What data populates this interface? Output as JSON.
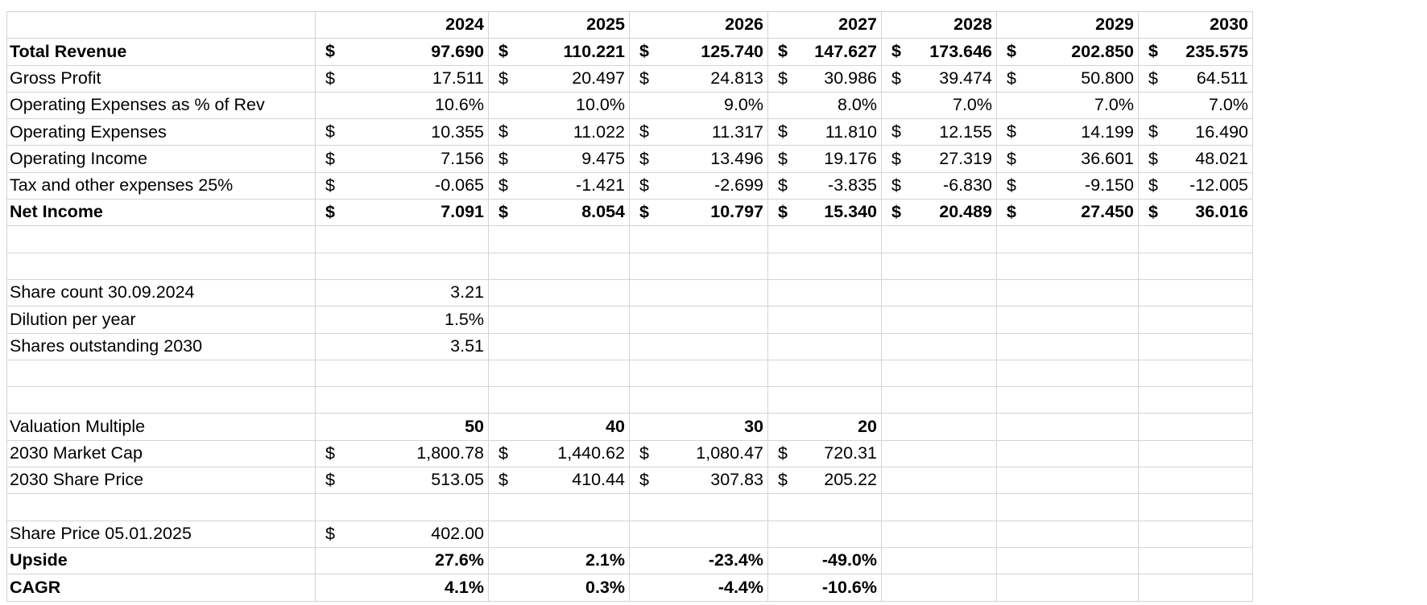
{
  "spreadsheet": {
    "years": [
      "2024",
      "2025",
      "2026",
      "2027",
      "2028",
      "2029",
      "2030"
    ],
    "currency": "$",
    "rows": {
      "total_revenue": {
        "label": "Total Revenue",
        "values": [
          "97.690",
          "110.221",
          "125.740",
          "147.627",
          "173.646",
          "202.850",
          "235.575"
        ]
      },
      "gross_profit": {
        "label": "Gross Profit",
        "values": [
          "17.511",
          "20.497",
          "24.813",
          "30.986",
          "39.474",
          "50.800",
          "64.511"
        ]
      },
      "opex_pct": {
        "label": "Operating Expenses as % of Rev",
        "values": [
          "10.6%",
          "10.0%",
          "9.0%",
          "8.0%",
          "7.0%",
          "7.0%",
          "7.0%"
        ]
      },
      "opex": {
        "label": "Operating Expenses",
        "values": [
          "10.355",
          "11.022",
          "11.317",
          "11.810",
          "12.155",
          "14.199",
          "16.490"
        ]
      },
      "operating_income": {
        "label": "Operating Income",
        "values": [
          "7.156",
          "9.475",
          "13.496",
          "19.176",
          "27.319",
          "36.601",
          "48.021"
        ]
      },
      "tax": {
        "label": "Tax and other expenses 25%",
        "values": [
          "-0.065",
          "-1.421",
          "-2.699",
          "-3.835",
          "-6.830",
          "-9.150",
          "-12.005"
        ]
      },
      "net_income": {
        "label": "Net Income",
        "values": [
          "7.091",
          "8.054",
          "10.797",
          "15.340",
          "20.489",
          "27.450",
          "36.016"
        ]
      }
    },
    "shares": {
      "share_count": {
        "label": "Share count 30.09.2024",
        "value": "3.21"
      },
      "dilution": {
        "label": "Dilution per year",
        "value": "1.5%"
      },
      "shares_2030": {
        "label": "Shares outstanding 2030",
        "value": "3.51"
      }
    },
    "valuation": {
      "multiple": {
        "label": "Valuation Multiple",
        "values": [
          "50",
          "40",
          "30",
          "20"
        ]
      },
      "market_cap": {
        "label": "2030 Market Cap",
        "values": [
          "1,800.78",
          "1,440.62",
          "1,080.47",
          "720.31"
        ]
      },
      "share_price_2030": {
        "label": "2030 Share Price",
        "values": [
          "513.05",
          "410.44",
          "307.83",
          "205.22"
        ]
      }
    },
    "current": {
      "share_price": {
        "label": "Share Price 05.01.2025",
        "value": "402.00"
      },
      "upside": {
        "label": "Upside",
        "values": [
          "27.6%",
          "2.1%",
          "-23.4%",
          "-49.0%"
        ]
      },
      "cagr": {
        "label": "CAGR",
        "values": [
          "4.1%",
          "0.3%",
          "-4.4%",
          "-10.6%"
        ]
      }
    }
  }
}
